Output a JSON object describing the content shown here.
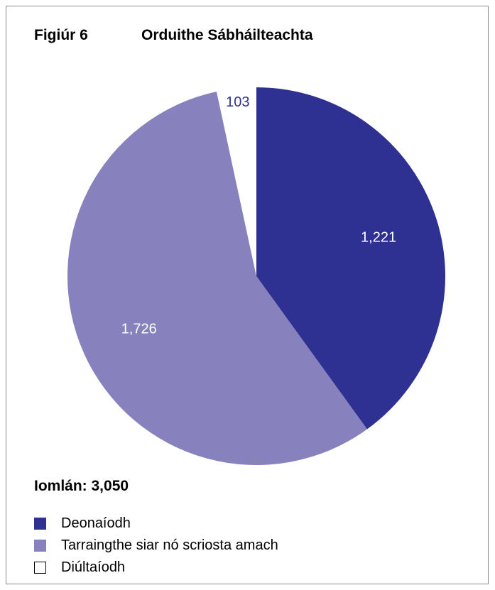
{
  "figure": {
    "number": "Figiúr 6",
    "title": "Orduithe Sábháilteachta"
  },
  "total_label": "Iomlán: 3,050",
  "colors": {
    "granted": "#2e3192",
    "withdrawn": "#8781bd",
    "refused": "#ffffff",
    "refused_label": "#2e3192"
  },
  "chart_data": {
    "type": "pie",
    "title": "Orduithe Sábháilteachta",
    "slices": [
      {
        "label": "Deonaíodh",
        "value": 1221,
        "value_label": "1,221"
      },
      {
        "label": "Tarraingthe siar nó scriosta amach",
        "value": 1726,
        "value_label": "1,726"
      },
      {
        "label": "Diúltaíodh",
        "value": 103,
        "value_label": "103"
      }
    ],
    "total": 3050,
    "start": "12 o'clock",
    "direction": "clockwise",
    "legend_position": "bottom-left"
  },
  "legend": [
    {
      "label": "Deonaíodh",
      "color": "#2e3192"
    },
    {
      "label": "Tarraingthe siar nó scriosta amach",
      "color": "#8781bd"
    },
    {
      "label": "Diúltaíodh",
      "color": "#ffffff"
    }
  ]
}
